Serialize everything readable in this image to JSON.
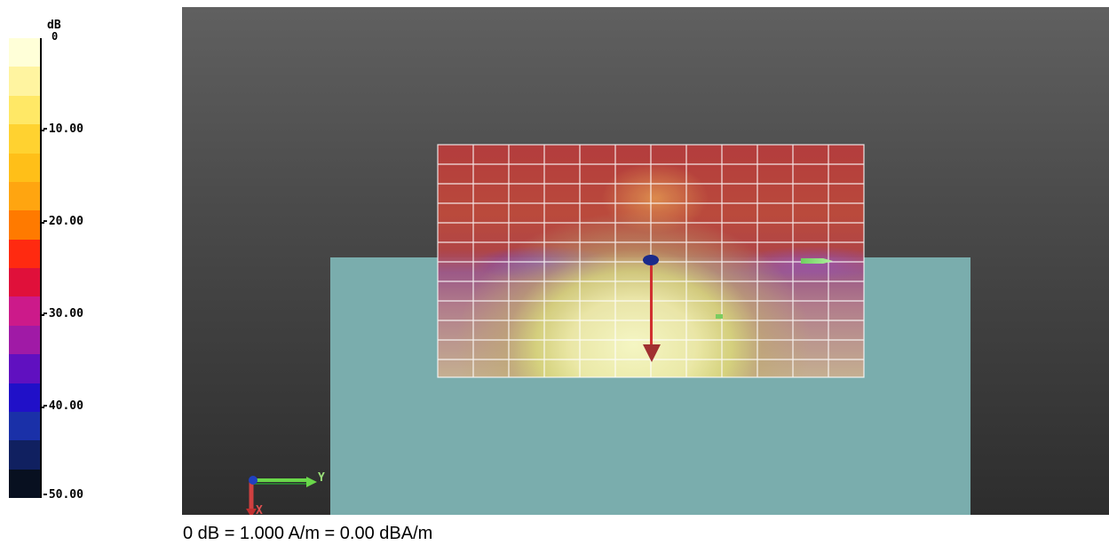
{
  "legend": {
    "unit": "dB",
    "top_value": "0",
    "ticks": [
      "-10.00",
      "-20.00",
      "-30.00",
      "-40.00",
      "-50.00"
    ],
    "swatch_colors": [
      "#ffffd8",
      "#fff4a0",
      "#ffe866",
      "#ffd230",
      "#ffbf18",
      "#ffa510",
      "#ff7a00",
      "#ff2a10",
      "#e0103a",
      "#cc1a8a",
      "#a01aa6",
      "#6010c0",
      "#2010c8",
      "#1a30a8",
      "#102060",
      "#081020"
    ]
  },
  "viewport": {
    "axis_y_label": "Y",
    "axis_x_label": "X"
  },
  "caption": "0 dB = 1.000 A/m = 0.00 dBA/m"
}
